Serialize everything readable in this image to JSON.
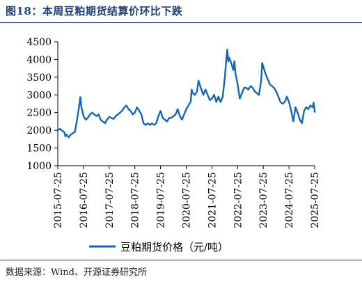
{
  "figure": {
    "title": "图18：本周豆粕期货结算价环比下跌",
    "source": "数据来源：Wind、开源证券研究所"
  },
  "colors": {
    "title": "#1f3f7a",
    "line": "#1565b8",
    "axis": "#000000"
  },
  "chart_data": {
    "type": "line",
    "title": "",
    "xlabel": "",
    "ylabel": "",
    "ylim": [
      1000,
      4500
    ],
    "yticks": [
      1000,
      1500,
      2000,
      2500,
      3000,
      3500,
      4000,
      4500
    ],
    "xticks": [
      "2015-07-25",
      "2016-07-25",
      "2017-07-25",
      "2018-07-25",
      "2019-07-25",
      "2020-07-25",
      "2021-07-25",
      "2022-07-25",
      "2023-07-25",
      "2024-07-25",
      "2025-07-25"
    ],
    "grid": false,
    "legend": "bottom",
    "series": [
      {
        "name": "豆粕期货价格（元/吨）",
        "points": [
          [
            "2015-07-25",
            2010
          ],
          [
            "2015-08-25",
            2040
          ],
          [
            "2015-09-25",
            1990
          ],
          [
            "2015-10-25",
            1950
          ],
          [
            "2015-11-10",
            1830
          ],
          [
            "2015-11-25",
            1880
          ],
          [
            "2015-12-25",
            1800
          ],
          [
            "2016-01-20",
            1870
          ],
          [
            "2016-02-25",
            1920
          ],
          [
            "2016-03-25",
            1960
          ],
          [
            "2016-04-15",
            2200
          ],
          [
            "2016-05-10",
            2500
          ],
          [
            "2016-06-01",
            2800
          ],
          [
            "2016-06-10",
            2940
          ],
          [
            "2016-06-25",
            2650
          ],
          [
            "2016-07-25",
            2400
          ],
          [
            "2016-08-25",
            2300
          ],
          [
            "2016-09-25",
            2350
          ],
          [
            "2016-10-25",
            2450
          ],
          [
            "2016-11-25",
            2500
          ],
          [
            "2016-12-25",
            2450
          ],
          [
            "2017-01-25",
            2400
          ],
          [
            "2017-02-25",
            2450
          ],
          [
            "2017-03-25",
            2300
          ],
          [
            "2017-04-25",
            2250
          ],
          [
            "2017-05-25",
            2200
          ],
          [
            "2017-06-25",
            2300
          ],
          [
            "2017-07-25",
            2380
          ],
          [
            "2017-08-25",
            2350
          ],
          [
            "2017-09-25",
            2320
          ],
          [
            "2017-10-25",
            2400
          ],
          [
            "2017-11-25",
            2450
          ],
          [
            "2017-12-25",
            2500
          ],
          [
            "2018-01-25",
            2550
          ],
          [
            "2018-02-25",
            2650
          ],
          [
            "2018-03-25",
            2700
          ],
          [
            "2018-04-25",
            2600
          ],
          [
            "2018-05-25",
            2550
          ],
          [
            "2018-06-25",
            2450
          ],
          [
            "2018-07-25",
            2500
          ],
          [
            "2018-08-25",
            2650
          ],
          [
            "2018-09-25",
            2550
          ],
          [
            "2018-10-25",
            2450
          ],
          [
            "2018-11-25",
            2200
          ],
          [
            "2018-12-25",
            2150
          ],
          [
            "2019-01-25",
            2200
          ],
          [
            "2019-02-25",
            2150
          ],
          [
            "2019-03-25",
            2200
          ],
          [
            "2019-04-25",
            2150
          ],
          [
            "2019-05-25",
            2200
          ],
          [
            "2019-06-25",
            2400
          ],
          [
            "2019-07-25",
            2550
          ],
          [
            "2019-08-25",
            2350
          ],
          [
            "2019-09-25",
            2300
          ],
          [
            "2019-10-25",
            2250
          ],
          [
            "2019-11-25",
            2350
          ],
          [
            "2019-12-25",
            2350
          ],
          [
            "2020-01-25",
            2400
          ],
          [
            "2020-02-25",
            2450
          ],
          [
            "2020-03-25",
            2600
          ],
          [
            "2020-04-25",
            2400
          ],
          [
            "2020-05-25",
            2300
          ],
          [
            "2020-06-25",
            2450
          ],
          [
            "2020-07-25",
            2600
          ],
          [
            "2020-08-25",
            2700
          ],
          [
            "2020-09-25",
            2800
          ],
          [
            "2020-10-10",
            3150
          ],
          [
            "2020-10-25",
            3050
          ],
          [
            "2020-11-25",
            3000
          ],
          [
            "2020-12-25",
            3100
          ],
          [
            "2021-01-15",
            3400
          ],
          [
            "2021-02-25",
            3150
          ],
          [
            "2021-03-25",
            3000
          ],
          [
            "2021-04-25",
            3150
          ],
          [
            "2021-05-25",
            3000
          ],
          [
            "2021-06-25",
            2850
          ],
          [
            "2021-07-25",
            2900
          ],
          [
            "2021-08-25",
            3000
          ],
          [
            "2021-09-25",
            2800
          ],
          [
            "2021-10-25",
            2950
          ],
          [
            "2021-11-25",
            2800
          ],
          [
            "2021-12-25",
            2950
          ],
          [
            "2022-01-25",
            3500
          ],
          [
            "2022-02-10",
            3900
          ],
          [
            "2022-03-01",
            4280
          ],
          [
            "2022-03-15",
            3950
          ],
          [
            "2022-03-28",
            4050
          ],
          [
            "2022-04-25",
            3900
          ],
          [
            "2022-05-25",
            3700
          ],
          [
            "2022-06-10",
            3950
          ],
          [
            "2022-06-25",
            3600
          ],
          [
            "2022-07-25",
            3300
          ],
          [
            "2022-08-25",
            2900
          ],
          [
            "2022-09-25",
            3050
          ],
          [
            "2022-10-25",
            3200
          ],
          [
            "2022-11-25",
            3200
          ],
          [
            "2022-12-25",
            3150
          ],
          [
            "2023-01-25",
            3250
          ],
          [
            "2023-02-25",
            3200
          ],
          [
            "2023-03-25",
            3100
          ],
          [
            "2023-04-25",
            3050
          ],
          [
            "2023-05-25",
            3000
          ],
          [
            "2023-06-25",
            3400
          ],
          [
            "2023-07-10",
            3900
          ],
          [
            "2023-07-25",
            3800
          ],
          [
            "2023-08-25",
            3600
          ],
          [
            "2023-09-25",
            3450
          ],
          [
            "2023-10-25",
            3300
          ],
          [
            "2023-11-25",
            3250
          ],
          [
            "2023-12-25",
            3200
          ],
          [
            "2024-01-25",
            3100
          ],
          [
            "2024-02-25",
            2950
          ],
          [
            "2024-03-25",
            2800
          ],
          [
            "2024-04-25",
            2750
          ],
          [
            "2024-05-25",
            2800
          ],
          [
            "2024-06-25",
            2950
          ],
          [
            "2024-07-25",
            2800
          ],
          [
            "2024-08-25",
            2550
          ],
          [
            "2024-09-25",
            2250
          ],
          [
            "2024-10-25",
            2650
          ],
          [
            "2024-11-25",
            2500
          ],
          [
            "2024-12-25",
            2300
          ],
          [
            "2025-01-25",
            2200
          ],
          [
            "2025-02-25",
            2550
          ],
          [
            "2025-03-25",
            2650
          ],
          [
            "2025-04-25",
            2600
          ],
          [
            "2025-05-25",
            2700
          ],
          [
            "2025-06-25",
            2650
          ],
          [
            "2025-07-10",
            2780
          ],
          [
            "2025-07-20",
            2650
          ],
          [
            "2025-07-25",
            2500
          ]
        ]
      }
    ]
  }
}
